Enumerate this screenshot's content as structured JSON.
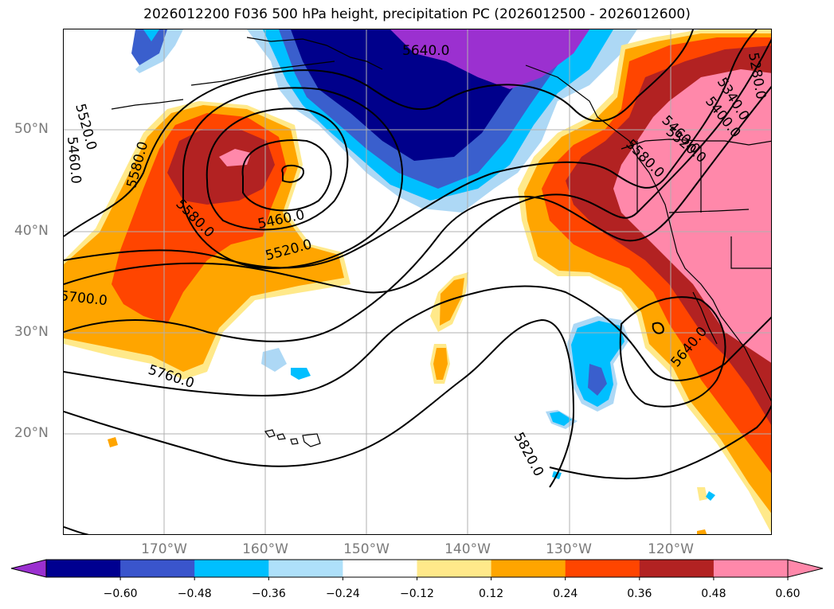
{
  "title": "2026012200 F036 500 hPa height, precipitation PC (2026012500 - 2026012600)",
  "lat_labels": [
    "50°N",
    "40°N",
    "30°N",
    "20°N"
  ],
  "lon_labels": [
    "170°W",
    "160°W",
    "150°W",
    "140°W",
    "130°W",
    "120°W"
  ],
  "contour_labels": [
    "5640.0",
    "5520.0",
    "5460.0",
    "5580.0",
    "5580.0",
    "5460.0",
    "5520.0",
    "5700.0",
    "5760.0",
    "5820.0",
    "5640.0",
    "5280.0",
    "5340.0",
    "5400.0",
    "5460.0",
    "5520.0",
    "5580.0"
  ],
  "colorbar": {
    "ticks": [
      "−0.60",
      "−0.48",
      "−0.36",
      "−0.24",
      "−0.12",
      "0.12",
      "0.24",
      "0.36",
      "0.48",
      "0.60"
    ],
    "colors": [
      "#9b30d0",
      "#000090",
      "#3a55cc",
      "#00bfff",
      "#aee0fa",
      "#ffffff",
      "#ffe98a",
      "#ffa500",
      "#ff4500",
      "#b22222",
      "#ff88aa",
      "#ff88aa"
    ]
  },
  "palette": {
    "purple": "#9b30d0",
    "navy": "#00008b",
    "royal": "#3a5fcd",
    "deepsky": "#00bfff",
    "lightblue": "#add8f5",
    "lightyellow": "#ffe98a",
    "orange": "#ffa500",
    "orangered": "#ff4500",
    "firebrick": "#b22222",
    "pink": "#ff88aa"
  }
}
